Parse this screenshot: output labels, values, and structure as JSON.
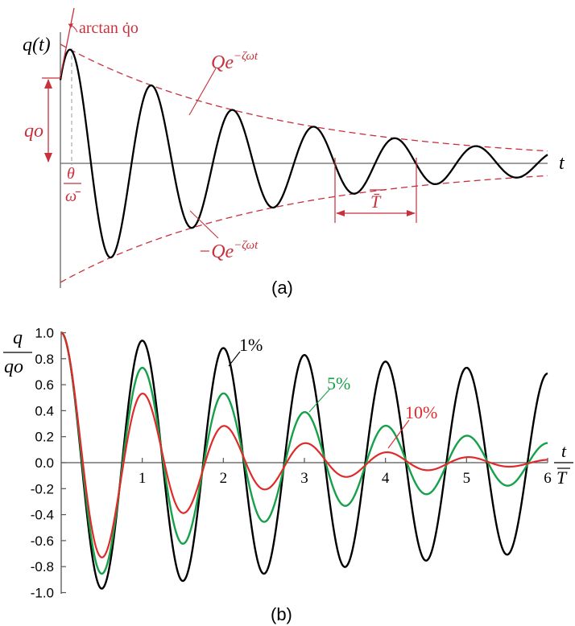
{
  "chart_data": [
    {
      "type": "line",
      "caption": "(a)",
      "ylabel": "q(t)",
      "xlabel": "t",
      "series": [
        {
          "name": "q(t)",
          "role": "response",
          "color": "#000000"
        },
        {
          "name": "Qe^{-ζωt}",
          "role": "upper envelope",
          "color": "#c8303c"
        },
        {
          "name": "−Qe^{-ζωt}",
          "role": "lower envelope",
          "color": "#c8303c"
        }
      ],
      "annotations": {
        "slope": "arctan q̇o",
        "initial_displacement": "qo",
        "phase_num": "θ",
        "phase_den": "ω̄",
        "period": "T̄",
        "upper_envelope": "Qe",
        "upper_exp": "−ζωt",
        "lower_envelope": "−Qe",
        "lower_exp": "−ζωt"
      },
      "params": {
        "zeta": 0.06,
        "cycles": 6.0,
        "Q": 1.0,
        "q0": 0.7
      }
    },
    {
      "type": "line",
      "caption": "(b)",
      "ylabel_num": "q",
      "ylabel_den": "qo",
      "xlabel_num": "t",
      "xlabel_den": "T",
      "x_ticks": [
        "1",
        "2",
        "3",
        "4",
        "5",
        "6"
      ],
      "y_ticks": [
        "1.0",
        "0.8",
        "0.6",
        "0.4",
        "0.2",
        "0.0",
        "-0.2",
        "-0.4",
        "-0.6",
        "-0.8",
        "-1.0"
      ],
      "xlim": [
        0,
        6
      ],
      "ylim": [
        -1.0,
        1.0
      ],
      "series": [
        {
          "name": "1%",
          "zeta": 0.01,
          "color": "#000000"
        },
        {
          "name": "5%",
          "zeta": 0.05,
          "color": "#16a04a"
        },
        {
          "name": "10%",
          "zeta": 0.1,
          "color": "#e02a2a"
        }
      ]
    }
  ]
}
